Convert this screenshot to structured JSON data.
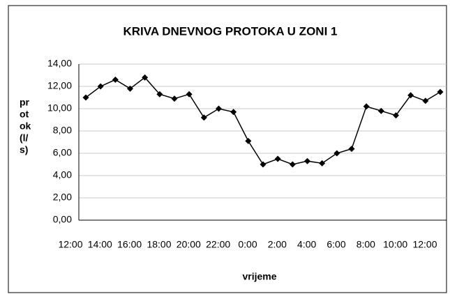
{
  "chart_data": {
    "type": "line",
    "title": "KRIVA DNEVNOG PROTOKA U ZONI 1",
    "xlabel": "vrijeme",
    "ylabel_lines": [
      "pr",
      "ot",
      "ok",
      "(l/",
      "s)"
    ],
    "categories": [
      "12:00",
      null,
      "14:00",
      null,
      "16:00",
      null,
      "18:00",
      null,
      "20:00",
      null,
      "22:00",
      null,
      "0:00",
      null,
      "2:00",
      null,
      "4:00",
      null,
      "6:00",
      null,
      "8:00",
      null,
      "10:00",
      null,
      "12:00"
    ],
    "series": [
      {
        "name": "protok",
        "color": "#000000",
        "values": [
          11.0,
          12.0,
          12.6,
          11.8,
          12.8,
          11.3,
          10.9,
          11.3,
          9.2,
          10.0,
          9.7,
          7.1,
          5.0,
          5.5,
          5.0,
          5.3,
          5.1,
          6.0,
          6.4,
          10.2,
          9.8,
          9.4,
          11.2,
          10.7,
          11.5
        ]
      }
    ],
    "ylim": [
      0,
      14
    ],
    "yticks": [
      {
        "value": 0,
        "label": "0,00"
      },
      {
        "value": 2,
        "label": "2,00"
      },
      {
        "value": 4,
        "label": "4,00"
      },
      {
        "value": 6,
        "label": "6,00"
      },
      {
        "value": 8,
        "label": "8,00"
      },
      {
        "value": 10,
        "label": "10,00"
      },
      {
        "value": 12,
        "label": "12,00"
      },
      {
        "value": 14,
        "label": "14,00"
      }
    ],
    "grid": true
  }
}
